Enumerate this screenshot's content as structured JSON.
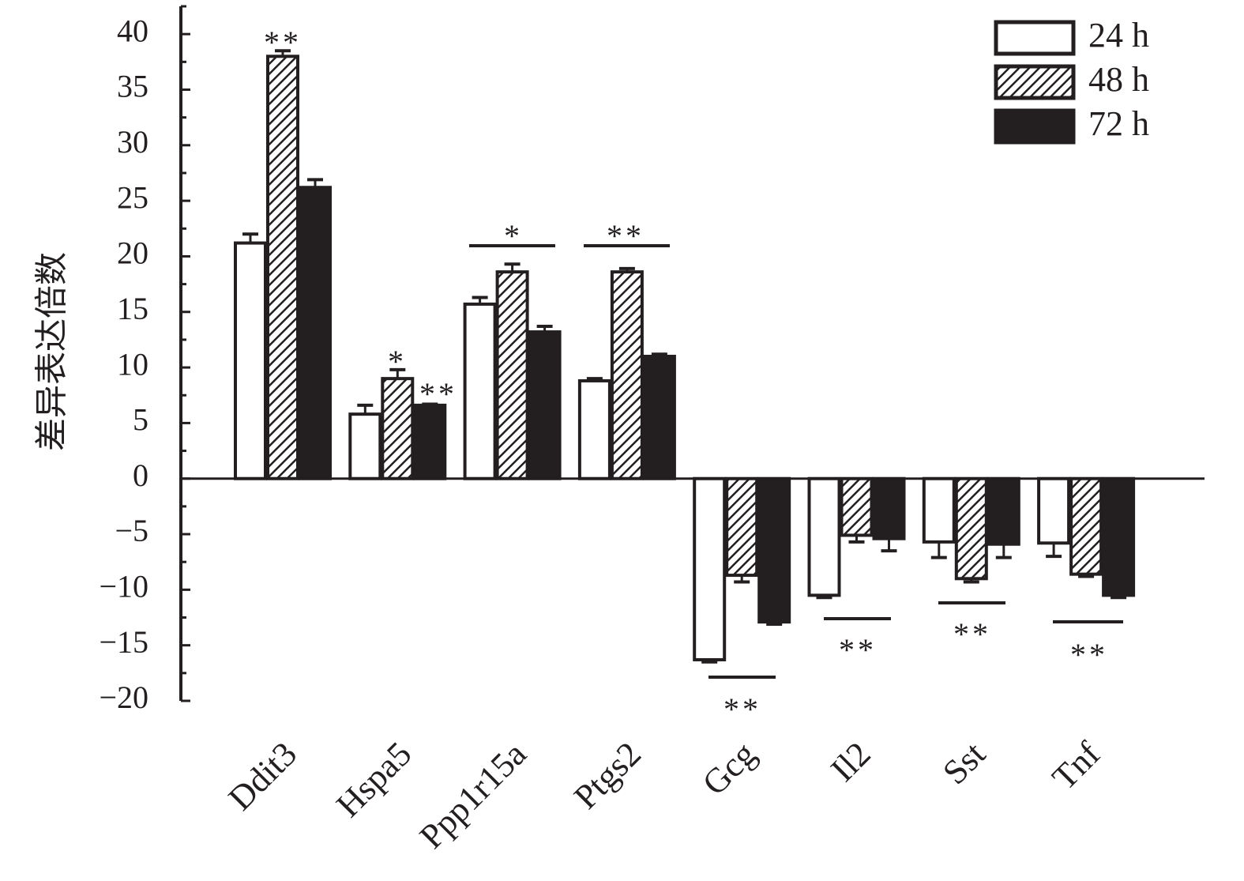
{
  "chart_data": {
    "type": "bar",
    "y_label": "差异表达倍数",
    "categories": [
      "Ddit3",
      "Hspa5",
      "Ppp1r15a",
      "Ptgs2",
      "Gcg",
      "Il2",
      "Sst",
      "Tnf"
    ],
    "series": [
      {
        "name": "24 h",
        "color": "#ffffff",
        "hatch": false,
        "values": [
          21.2,
          5.8,
          15.7,
          8.8,
          -16.3,
          -10.5,
          -5.7,
          -5.8
        ],
        "errors": [
          0.8,
          0.8,
          0.6,
          0.2,
          0.2,
          0.2,
          1.4,
          1.2
        ]
      },
      {
        "name": "48 h",
        "color": "#ffffff",
        "hatch": true,
        "values": [
          38.0,
          9.0,
          18.6,
          18.6,
          -8.7,
          -5.1,
          -9.0,
          -8.6
        ],
        "errors": [
          0.5,
          0.8,
          0.7,
          0.3,
          0.6,
          0.6,
          0.3,
          0.2
        ]
      },
      {
        "name": "72 h",
        "color": "#231f20",
        "hatch": false,
        "values": [
          26.2,
          6.6,
          13.2,
          11.0,
          -12.9,
          -5.4,
          -5.9,
          -10.5
        ],
        "errors": [
          0.7,
          0.1,
          0.5,
          0.2,
          0.2,
          1.1,
          1.2,
          0.2
        ]
      }
    ],
    "annotations": [
      "**",
      "*",
      "**",
      "*",
      "**",
      "**",
      "**",
      "**",
      "**"
    ],
    "ylim": [
      -20,
      42.5
    ],
    "yticks": [
      {
        "value": -20,
        "label": "−20"
      },
      {
        "value": -15,
        "label": "−15"
      },
      {
        "value": -10,
        "label": "−10"
      },
      {
        "value": -5,
        "label": "−5"
      },
      0,
      5,
      10,
      15,
      20,
      25,
      30,
      35,
      40
    ],
    "yminorticks": [
      -17.5,
      -12.5,
      -7.5,
      -2.5,
      2.5,
      7.5,
      12.5,
      17.5,
      22.5,
      27.5,
      32.5,
      37.5,
      42.5
    ],
    "legend": "top-right"
  }
}
